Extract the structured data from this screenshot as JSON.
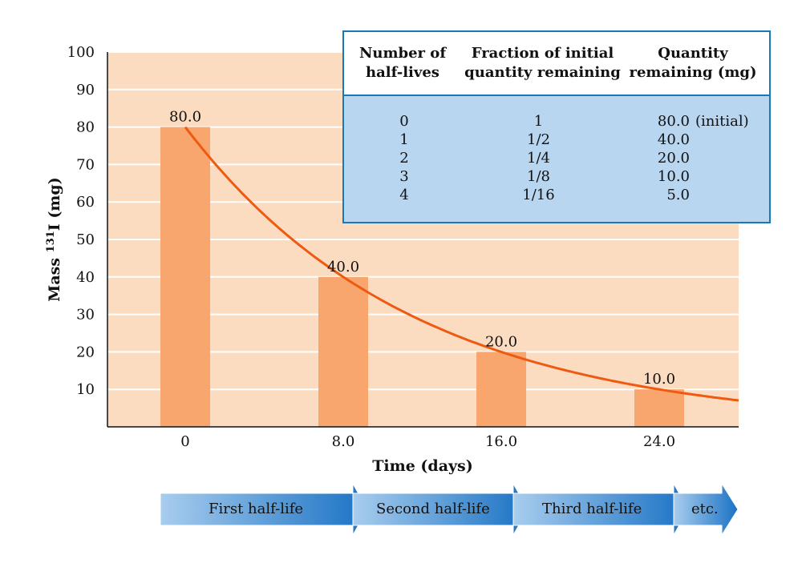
{
  "chart_data": {
    "type": "bar",
    "title": "",
    "xlabel": "Time (days)",
    "ylabel_prefix": "Mass ",
    "ylabel_isotope": "131",
    "ylabel_suffix": "I (mg)",
    "categories": [
      "0",
      "8.0",
      "16.0",
      "24.0"
    ],
    "x": [
      0,
      8,
      16,
      24
    ],
    "values": [
      80,
      40,
      20,
      10
    ],
    "data_labels": [
      "80.0",
      "40.0",
      "20.0",
      "10.0"
    ],
    "yticks": [
      10,
      20,
      30,
      40,
      50,
      60,
      70,
      80,
      90,
      100
    ],
    "ylim": [
      0,
      100
    ],
    "grid": true,
    "curve": {
      "type": "exponential-decay",
      "initial": 80,
      "half_life_days": 8
    },
    "colors": {
      "background": "#fcdcc0",
      "bar": "#f8a56e",
      "curve": "#ee5a12",
      "grid": "#ffffff"
    }
  },
  "table": {
    "headers": [
      [
        "Number of",
        "half-lives"
      ],
      [
        "Fraction of initial",
        "quantity remaining"
      ],
      [
        "Quantity",
        "remaining (mg)"
      ]
    ],
    "rows": [
      {
        "n": "0",
        "fraction": "1",
        "quantity": "80.0",
        "note": "(initial)"
      },
      {
        "n": "1",
        "fraction": "1/2",
        "quantity": "40.0",
        "note": ""
      },
      {
        "n": "2",
        "fraction": "1/4",
        "quantity": "20.0",
        "note": ""
      },
      {
        "n": "3",
        "fraction": "1/8",
        "quantity": "10.0",
        "note": ""
      },
      {
        "n": "4",
        "fraction": "1/16",
        "quantity": "5.0",
        "note": ""
      }
    ],
    "colors": {
      "header_bg": "#ffffff",
      "body_bg": "#b8d6f0",
      "border": "#1a78b8"
    }
  },
  "arrows": {
    "labels": [
      "First half-life",
      "Second half-life",
      "Third half-life",
      "etc."
    ],
    "colors": {
      "light": "#a8cdee",
      "dark": "#1a72c4"
    }
  }
}
